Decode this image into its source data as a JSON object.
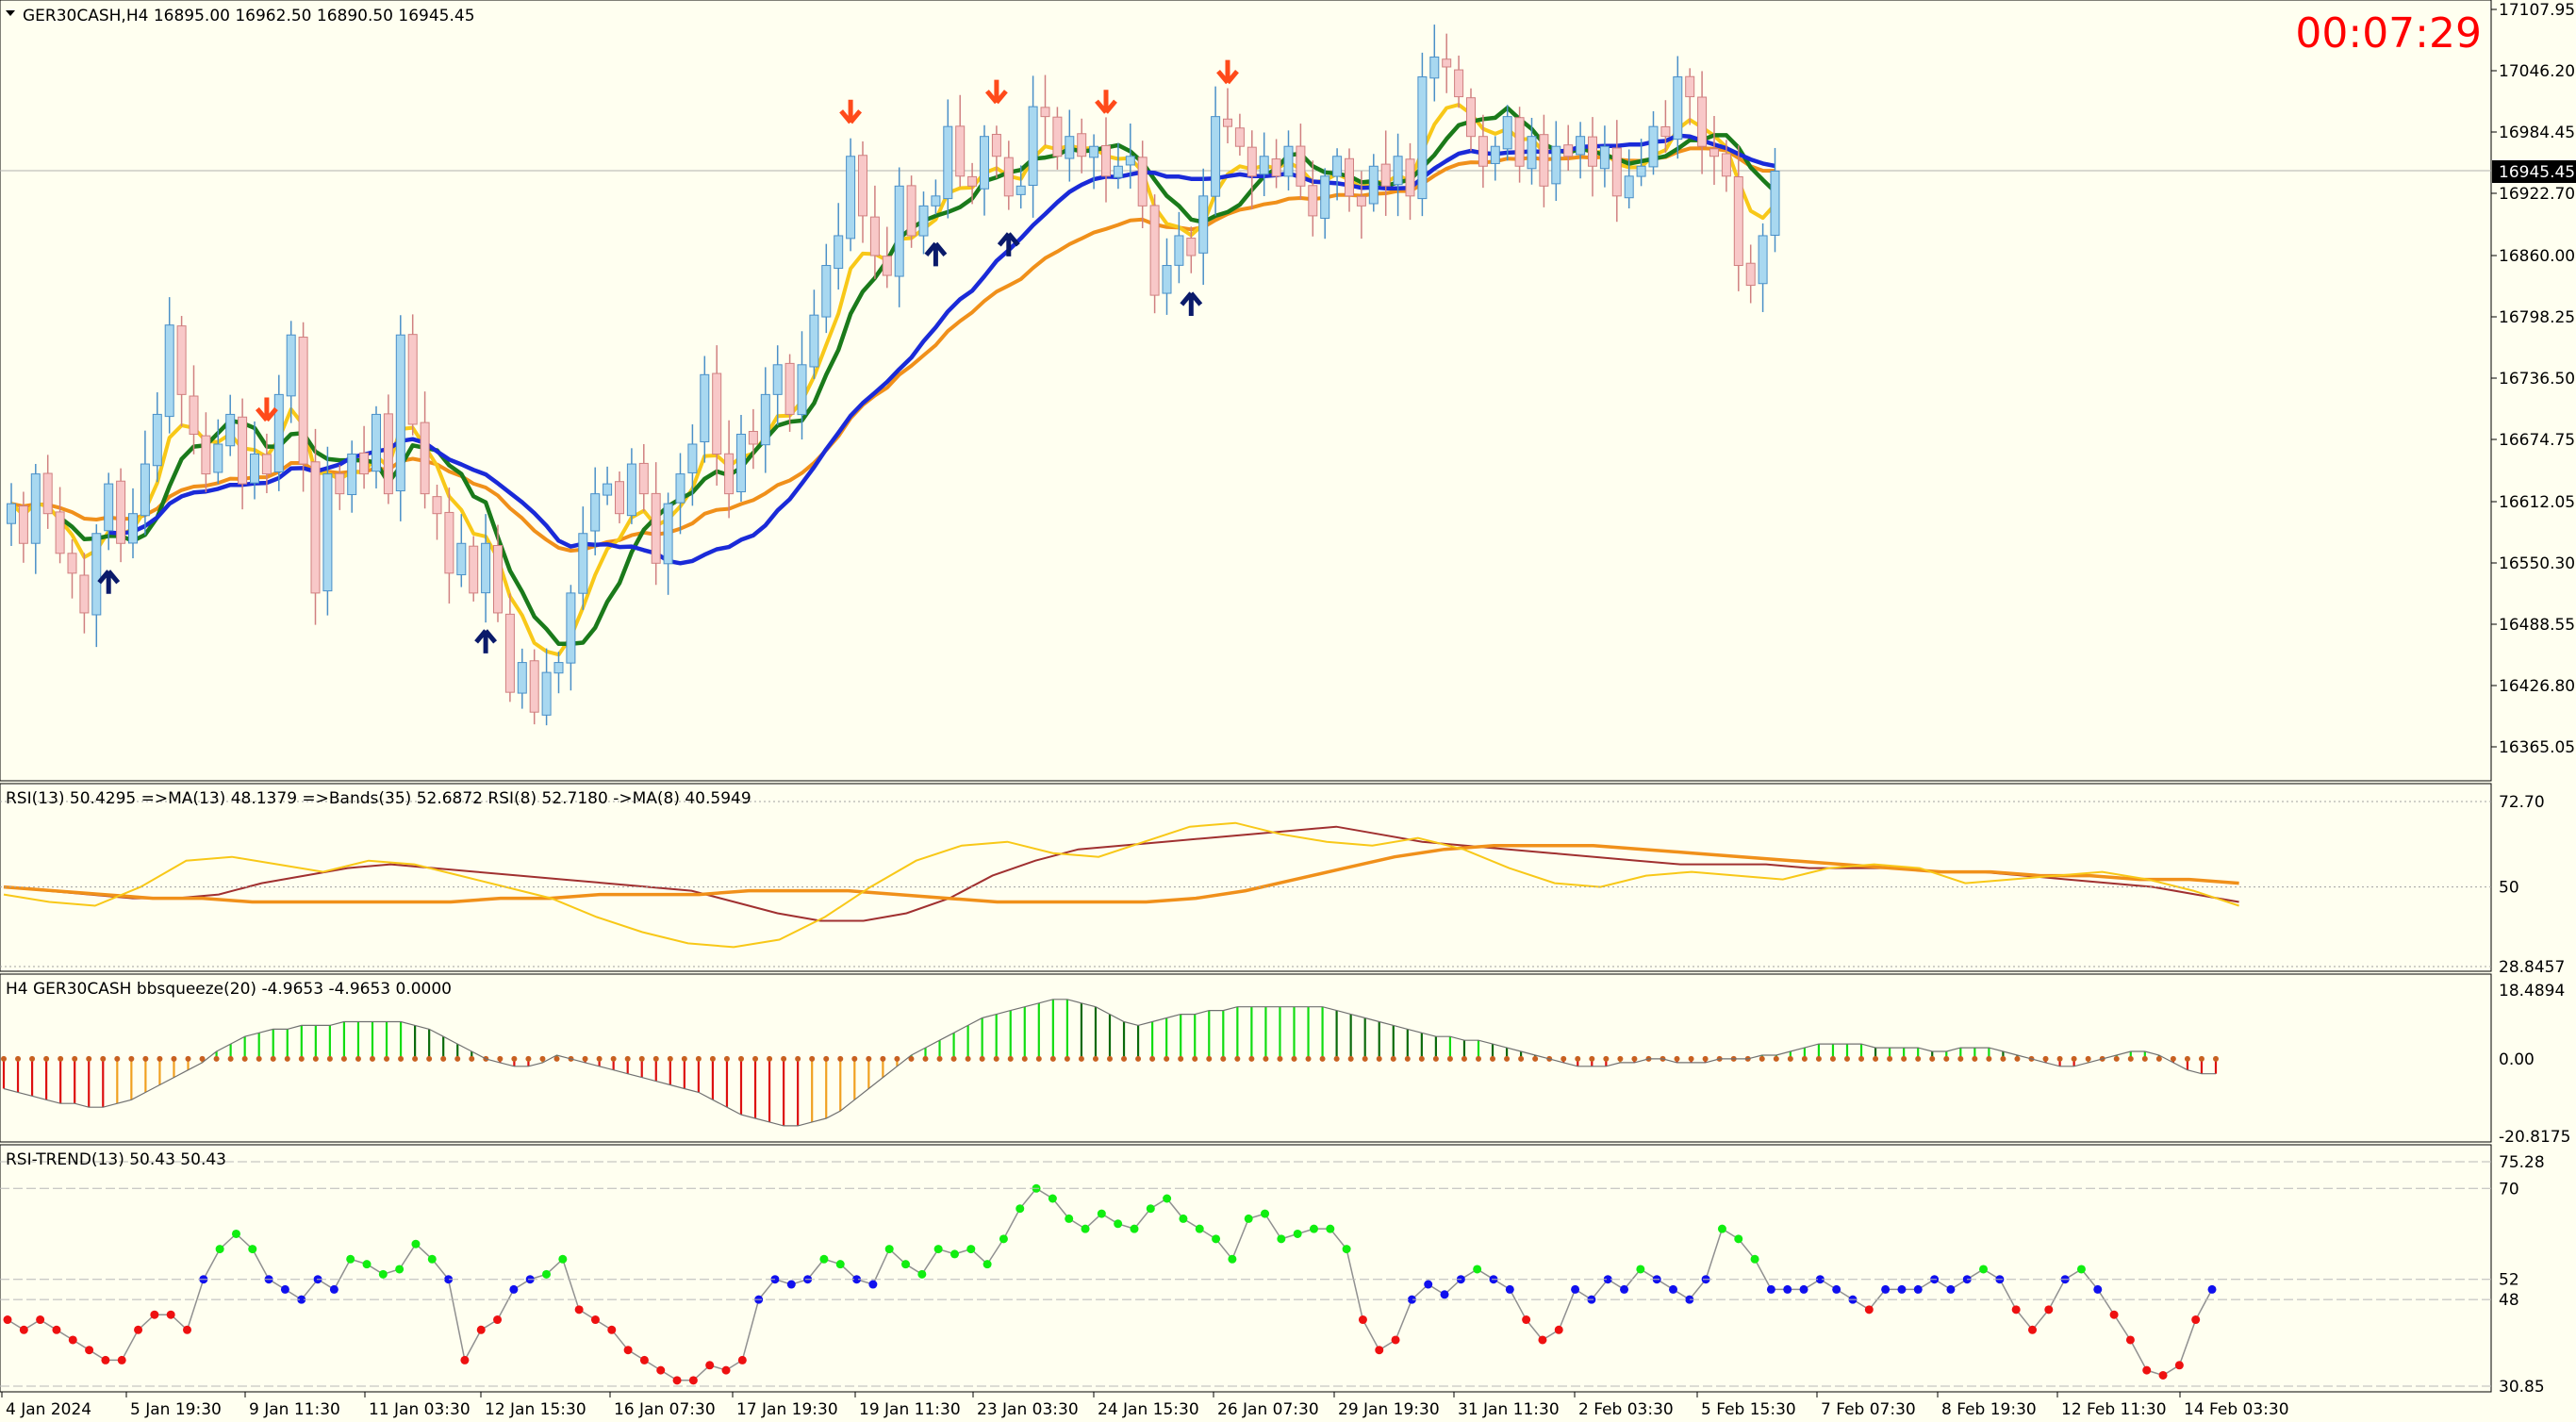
{
  "title": "GER30CASH,H4  16895.00 16962.50 16890.50 16945.45",
  "timer": "00:07:29",
  "current_price": "16945.45",
  "colors": {
    "background": "#fffff0",
    "bull_body": "#a8d8f0",
    "bull_edge": "#4a90c8",
    "bear_body": "#f8c8c8",
    "bear_edge": "#d08080",
    "ma_orange": "#f0901a",
    "ma_yellow": "#f8c818",
    "ma_green": "#1a7a1a",
    "ma_blue": "#1a2ad8",
    "arrow_up": "#0a1a6a",
    "arrow_down": "#ff4a1a",
    "rsi_main": "#a03030",
    "rsi_ma": "#f0901a",
    "rsi_fast": "#f8c818",
    "sq_green": "#10dd10",
    "sq_dkgreen": "#0a6a0a",
    "sq_red": "#dd1010",
    "sq_orange": "#f0a020",
    "trend_green": "#10ee10",
    "trend_blue": "#1010ee",
    "trend_red": "#ee1010"
  },
  "x_axis_labels": [
    "4 Jan 2024",
    "5 Jan 19:30",
    "9 Jan 11:30",
    "11 Jan 03:30",
    "12 Jan 15:30",
    "16 Jan 07:30",
    "17 Jan 19:30",
    "19 Jan 11:30",
    "23 Jan 03:30",
    "24 Jan 15:30",
    "26 Jan 07:30",
    "29 Jan 19:30",
    "31 Jan 11:30",
    "2 Feb 03:30",
    "5 Feb 15:30",
    "7 Feb 07:30",
    "8 Feb 19:30",
    "12 Feb 11:30",
    "14 Feb 03:30"
  ],
  "chart_data": [
    {
      "type": "candlestick",
      "y_ticks": [
        "17107.95",
        "17046.20",
        "16984.45",
        "16922.70",
        "16860.00",
        "16798.25",
        "16736.50",
        "16674.75",
        "16612.05",
        "16550.30",
        "16488.55",
        "16426.80",
        "16365.05"
      ],
      "ylim": [
        16365.05,
        17107.95
      ],
      "price_line": 16945.45,
      "closes": [
        16610,
        16570,
        16640,
        16600,
        16560,
        16540,
        16500,
        16580,
        16630,
        16570,
        16600,
        16650,
        16700,
        16790,
        16720,
        16680,
        16640,
        16670,
        16700,
        16630,
        16660,
        16640,
        16720,
        16780,
        16650,
        16520,
        16640,
        16620,
        16660,
        16640,
        16700,
        16620,
        16780,
        16690,
        16620,
        16600,
        16540,
        16570,
        16520,
        16570,
        16500,
        16420,
        16450,
        16400,
        16440,
        16450,
        16520,
        16580,
        16620,
        16630,
        16600,
        16650,
        16620,
        16550,
        16610,
        16640,
        16670,
        16740,
        16660,
        16620,
        16680,
        16670,
        16720,
        16750,
        16700,
        16750,
        16800,
        16850,
        16880,
        16960,
        16900,
        16860,
        16840,
        16930,
        16880,
        16910,
        16920,
        16990,
        16940,
        16930,
        16980,
        16960,
        16920,
        16930,
        17010,
        17000,
        16960,
        16980,
        16960,
        16970,
        16940,
        16950,
        16960,
        16910,
        16820,
        16850,
        16880,
        16860,
        16920,
        17000,
        16990,
        16970,
        16940,
        16960,
        16940,
        16970,
        16930,
        16900,
        16940,
        16960,
        16920,
        16910,
        16950,
        16930,
        16960,
        16920,
        17040,
        17060,
        17050,
        17020,
        16980,
        16950,
        16970,
        17000,
        16950,
        16980,
        16930,
        16970,
        16960,
        16980,
        16950,
        16970,
        16920,
        16940,
        16950,
        16990,
        16980,
        17040,
        17020,
        16970,
        16960,
        16940,
        16850,
        16830,
        16880,
        16945
      ]
    },
    {
      "type": "line",
      "header": "RSI(13) 50.4295  =>MA(13) 48.1379  =>Bands(35) 52.6872  RSI(8) 52.7180  ->MA(8) 40.5949",
      "y_ticks": [
        "72.70",
        "50",
        "28.8457"
      ],
      "ylim": [
        28.8457,
        72.7
      ],
      "series": [
        {
          "values": [
            50,
            49,
            48,
            47,
            47,
            48,
            51,
            53,
            55,
            56,
            55,
            54,
            53,
            52,
            51,
            50,
            49,
            46,
            43,
            41,
            41,
            43,
            47,
            53,
            57,
            60,
            61,
            62,
            63,
            64,
            65,
            66,
            64,
            62,
            61,
            60,
            59,
            58,
            57,
            56,
            56,
            56,
            55,
            55,
            55,
            54,
            54,
            53,
            52,
            51,
            50,
            48,
            46
          ]
        },
        {
          "values": [
            50,
            49,
            48,
            47,
            47,
            46,
            46,
            46,
            46,
            46,
            47,
            47,
            48,
            48,
            48,
            49,
            49,
            49,
            48,
            47,
            46,
            46,
            46,
            46,
            47,
            49,
            52,
            55,
            58,
            60,
            61,
            61,
            61,
            60,
            59,
            58,
            57,
            56,
            55,
            54,
            54,
            53,
            53,
            52,
            52,
            51
          ]
        },
        {
          "values": [
            48,
            46,
            45,
            50,
            57,
            58,
            56,
            54,
            57,
            56,
            53,
            50,
            47,
            42,
            38,
            35,
            34,
            36,
            42,
            50,
            57,
            61,
            62,
            59,
            58,
            62,
            66,
            67,
            64,
            62,
            61,
            63,
            60,
            55,
            51,
            50,
            53,
            54,
            53,
            52,
            55,
            56,
            55,
            51,
            52,
            53,
            54,
            52,
            49,
            45
          ]
        }
      ]
    },
    {
      "type": "bar",
      "header": "H4 GER30CASH bbsqueeze(20) -4.9653 -4.9653 0.0000",
      "y_ticks": [
        "18.4894",
        "0.00",
        "-20.8175"
      ],
      "ylim": [
        -20.8175,
        18.4894
      ],
      "values": [
        -8,
        -9,
        -10,
        -11,
        -12,
        -12,
        -13,
        -13,
        -12,
        -11,
        -9,
        -7,
        -5,
        -3,
        -1,
        2,
        4,
        6,
        7,
        8,
        8,
        9,
        9,
        9,
        10,
        10,
        10,
        10,
        10,
        9,
        8,
        6,
        4,
        2,
        0,
        -1,
        -2,
        -2,
        -1,
        1,
        0,
        -1,
        -2,
        -3,
        -4,
        -5,
        -6,
        -7,
        -8,
        -9,
        -11,
        -13,
        -15,
        -16,
        -17,
        -18,
        -18,
        -17,
        -16,
        -14,
        -11,
        -8,
        -5,
        -2,
        1,
        3,
        5,
        7,
        9,
        11,
        12,
        13,
        14,
        15,
        16,
        16,
        15,
        14,
        12,
        10,
        9,
        10,
        11,
        12,
        12,
        13,
        13,
        14,
        14,
        14,
        14,
        14,
        14,
        14,
        13,
        12,
        11,
        10,
        9,
        8,
        7,
        6,
        6,
        5,
        5,
        4,
        3,
        2,
        1,
        0,
        -1,
        -2,
        -2,
        -2,
        -1,
        -1,
        0,
        0,
        -1,
        -1,
        -1,
        0,
        0,
        0,
        1,
        1,
        2,
        3,
        4,
        4,
        4,
        4,
        3,
        3,
        3,
        3,
        2,
        2,
        3,
        3,
        3,
        2,
        1,
        0,
        -1,
        -2,
        -2,
        -1,
        0,
        1,
        2,
        2,
        1,
        -1,
        -3,
        -4,
        -4
      ]
    },
    {
      "type": "scatter",
      "header": "RSI-TREND(13) 50.43 50.43",
      "y_ticks": [
        "75.28",
        "70",
        "52",
        "48",
        "30.85"
      ],
      "ylim": [
        30.85,
        75.28
      ],
      "values": [
        44,
        42,
        44,
        42,
        40,
        38,
        36,
        36,
        42,
        45,
        45,
        42,
        52,
        58,
        61,
        58,
        52,
        50,
        48,
        52,
        50,
        56,
        55,
        53,
        54,
        59,
        56,
        52,
        36,
        42,
        44,
        50,
        52,
        53,
        56,
        46,
        44,
        42,
        38,
        36,
        34,
        32,
        32,
        35,
        34,
        36,
        48,
        52,
        51,
        52,
        56,
        55,
        52,
        51,
        58,
        55,
        53,
        58,
        57,
        58,
        55,
        60,
        66,
        70,
        68,
        64,
        62,
        65,
        63,
        62,
        66,
        68,
        64,
        62,
        60,
        56,
        64,
        65,
        60,
        61,
        62,
        62,
        58,
        44,
        38,
        40,
        48,
        51,
        49,
        52,
        54,
        52,
        50,
        44,
        40,
        42,
        50,
        48,
        52,
        50,
        54,
        52,
        50,
        48,
        52,
        62,
        60,
        56,
        50,
        50,
        50,
        52,
        50,
        48,
        46,
        50,
        50,
        50,
        52,
        50,
        52,
        54,
        52,
        46,
        42,
        46,
        52,
        54,
        50,
        45,
        40,
        34,
        33,
        35,
        44,
        50
      ]
    }
  ]
}
